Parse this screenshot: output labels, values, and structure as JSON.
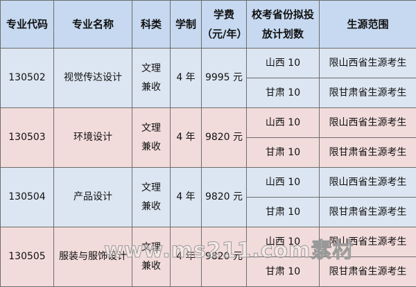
{
  "headers": [
    "专业代码",
    "专业名称",
    "科类",
    "学制",
    "学费",
    "（元/年）",
    "校考省份拟投",
    "放计划数",
    "生源范围"
  ],
  "rows": [
    {
      "code": "130502",
      "name": "视觉传达设计",
      "type1": "文理",
      "type2": "兼收",
      "years": "4 年",
      "fee": "9995 元",
      "plans": [
        {
          "province": "山西 10",
          "scope": "限山西省生源考生"
        },
        {
          "province": "甘肃 10",
          "scope": "限甘肃省生源考生"
        }
      ]
    },
    {
      "code": "130503",
      "name": "环境设计",
      "type1": "文理",
      "type2": "兼收",
      "years": "4 年",
      "fee": "9820 元",
      "plans": [
        {
          "province": "山西 10",
          "scope": "限山西省生源考生"
        },
        {
          "province": "甘肃 10",
          "scope": "限甘肃省生源考生"
        }
      ]
    },
    {
      "code": "130504",
      "name": "产品设计",
      "type1": "文理",
      "type2": "兼收",
      "years": "4 年",
      "fee": "9820 元",
      "plans": [
        {
          "province": "山西 10",
          "scope": "限山西省生源考生"
        },
        {
          "province": "甘肃 10",
          "scope": "限甘肃省生源考生"
        }
      ]
    },
    {
      "code": "130505",
      "name": "服装与服饰设计",
      "type1": "文理",
      "type2": "兼收",
      "years": "4 年",
      "fee": "9820 元",
      "plans": [
        {
          "province": "山西 10",
          "scope": "限山西省生源考生"
        },
        {
          "province": "甘肃 10",
          "scope": "限甘肃省生源考生"
        }
      ]
    }
  ],
  "watermark": "www.ms211.com素材",
  "colors": {
    "header": "#c6d9f0",
    "row_blue": "#dce6f2",
    "row_pink": "#f2dcdb"
  }
}
